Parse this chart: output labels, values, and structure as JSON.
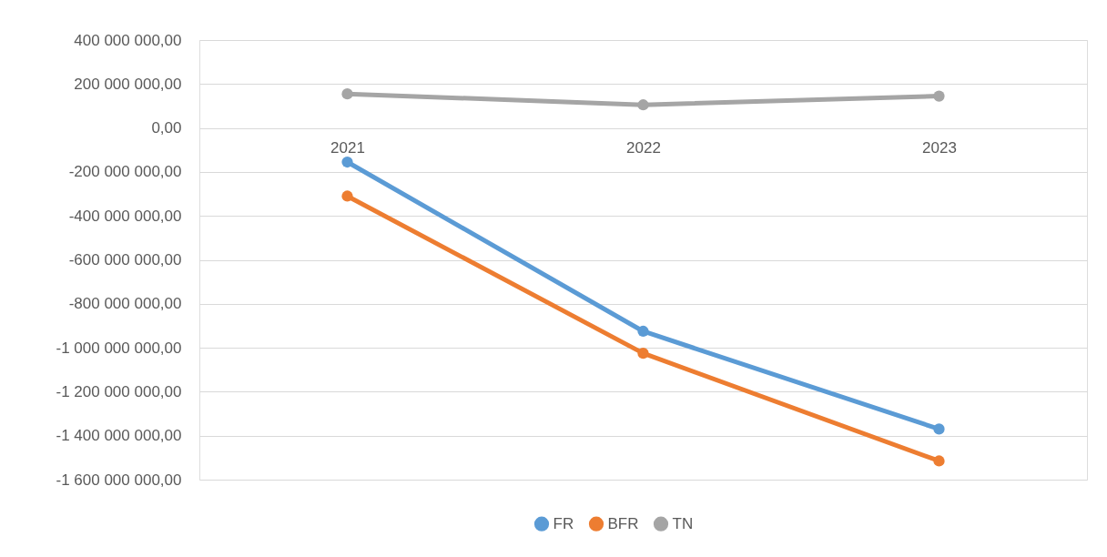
{
  "chart_data": {
    "type": "line",
    "categories": [
      "2021",
      "2022",
      "2023"
    ],
    "series": [
      {
        "name": "FR",
        "color": "#5b9bd5",
        "values": [
          -155000000,
          -925000000,
          -1370000000
        ]
      },
      {
        "name": "BFR",
        "color": "#ed7d31",
        "values": [
          -310000000,
          -1025000000,
          -1515000000
        ]
      },
      {
        "name": "TN",
        "color": "#a5a5a5",
        "values": [
          155000000,
          105000000,
          145000000
        ]
      }
    ],
    "ylim": [
      -1600000000,
      400000000
    ],
    "yticks": [
      {
        "value": 400000000,
        "label": "400 000 000,00"
      },
      {
        "value": 200000000,
        "label": "200 000 000,00"
      },
      {
        "value": 0,
        "label": "0,00"
      },
      {
        "value": -200000000,
        "label": "-200 000 000,00"
      },
      {
        "value": -400000000,
        "label": "-400 000 000,00"
      },
      {
        "value": -600000000,
        "label": "-600 000 000,00"
      },
      {
        "value": -800000000,
        "label": "-800 000 000,00"
      },
      {
        "value": -1000000000,
        "label": "-1 000 000 000,00"
      },
      {
        "value": -1200000000,
        "label": "-1 200 000 000,00"
      },
      {
        "value": -1400000000,
        "label": "-1 400 000 000,00"
      },
      {
        "value": -1600000000,
        "label": "-1 600 000 000,00"
      }
    ],
    "grid": "y",
    "legend": "bottom",
    "marker": "circle",
    "line_style": "solid"
  }
}
